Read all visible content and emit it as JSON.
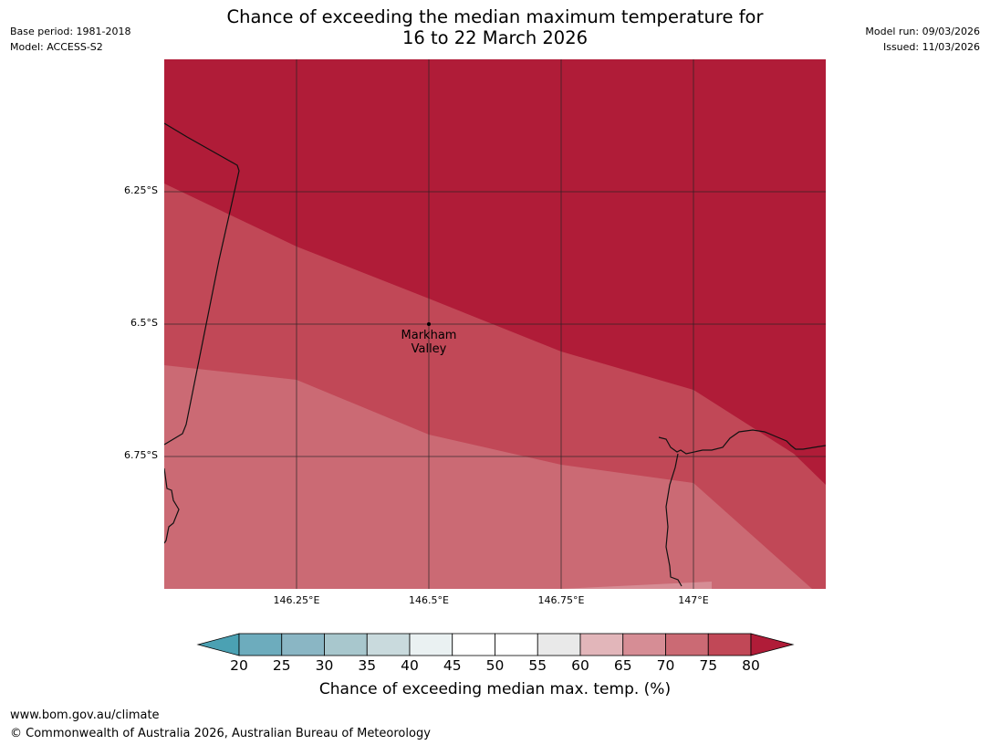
{
  "header": {
    "title_line1": "Chance of exceeding the median maximum temperature for",
    "title_line2": "16 to 22 March 2026",
    "base_period": "Base period: 1981-2018",
    "model": "Model: ACCESS-S2",
    "model_run": "Model run: 09/03/2026",
    "issued": "Issued: 11/03/2026"
  },
  "map": {
    "lat_labels": [
      "6.25°S",
      "6.5°S",
      "6.75°S"
    ],
    "lon_labels": [
      "146.25°E",
      "146.5°E",
      "146.75°E",
      "147°E"
    ],
    "place": {
      "line1": "Markham",
      "line2": "Valley"
    },
    "zone_colors": {
      "above_80": "#b01c38",
      "75_80": "#c14857",
      "70_75": "#cb6a74",
      "65_70": "#d68d95"
    }
  },
  "colorbar": {
    "ticks": [
      "20",
      "25",
      "30",
      "35",
      "40",
      "45",
      "50",
      "55",
      "60",
      "65",
      "70",
      "75",
      "80"
    ],
    "colors": [
      "#4ba1b3",
      "#6dacbd",
      "#8ab6c4",
      "#a8c7cd",
      "#c9dadd",
      "#eaf1f2",
      "#ffffff",
      "#ffffff",
      "#e9e9e9",
      "#e2b6ba",
      "#d68d95",
      "#cb6a74",
      "#c14857",
      "#b01c38"
    ],
    "label": "Chance of exceeding median max. temp. (%)"
  },
  "footer": {
    "url": "www.bom.gov.au/climate",
    "copyright": "© Commonwealth of Australia 2026, Australian Bureau of Meteorology"
  }
}
